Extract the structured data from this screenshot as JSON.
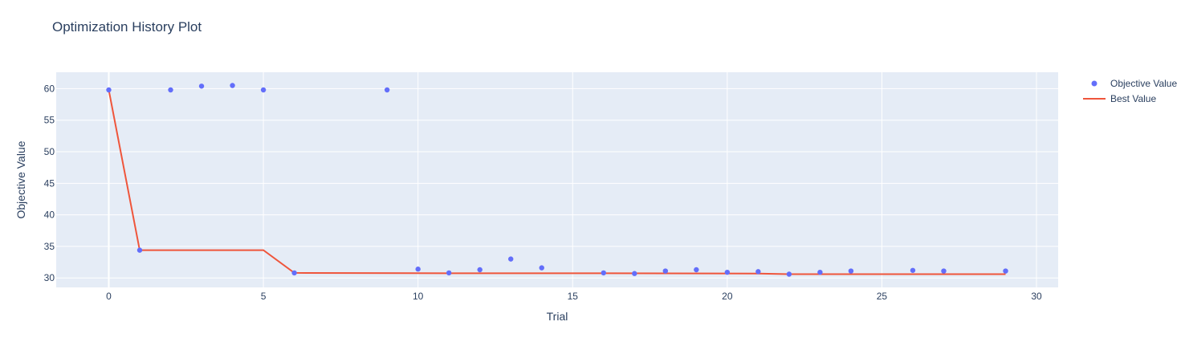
{
  "chart_data": {
    "type": "scatter",
    "title": "Optimization History Plot",
    "xlabel": "Trial",
    "ylabel": "Objective Value",
    "xlim": [
      -1.7,
      30.7
    ],
    "ylim": [
      28.5,
      62.6
    ],
    "xticks": [
      0,
      5,
      10,
      15,
      20,
      25,
      30
    ],
    "yticks": [
      30,
      35,
      40,
      45,
      50,
      55,
      60
    ],
    "grid": true,
    "legend_position": "top-right",
    "colors": {
      "plot_bg": "#e5ecf6",
      "grid": "#ffffff",
      "text": "#2a3f5f"
    },
    "series": [
      {
        "name": "Objective Value",
        "mode": "markers",
        "color": "#636efa",
        "points": [
          {
            "x": 0,
            "y": 59.8
          },
          {
            "x": 1,
            "y": 34.4
          },
          {
            "x": 2,
            "y": 59.8
          },
          {
            "x": 3,
            "y": 60.4
          },
          {
            "x": 4,
            "y": 60.5
          },
          {
            "x": 5,
            "y": 59.8
          },
          {
            "x": 6,
            "y": 30.8
          },
          {
            "x": 9,
            "y": 59.8
          },
          {
            "x": 10,
            "y": 31.4
          },
          {
            "x": 11,
            "y": 30.8
          },
          {
            "x": 12,
            "y": 31.3
          },
          {
            "x": 13,
            "y": 33.0
          },
          {
            "x": 14,
            "y": 31.6
          },
          {
            "x": 16,
            "y": 30.8
          },
          {
            "x": 17,
            "y": 30.7
          },
          {
            "x": 18,
            "y": 31.1
          },
          {
            "x": 19,
            "y": 31.3
          },
          {
            "x": 20,
            "y": 30.9
          },
          {
            "x": 21,
            "y": 31.0
          },
          {
            "x": 22,
            "y": 30.6
          },
          {
            "x": 23,
            "y": 30.9
          },
          {
            "x": 24,
            "y": 31.1
          },
          {
            "x": 26,
            "y": 31.2
          },
          {
            "x": 27,
            "y": 31.1
          },
          {
            "x": 29,
            "y": 31.1
          }
        ]
      },
      {
        "name": "Best Value",
        "mode": "lines",
        "color": "#ef553b",
        "points": [
          {
            "x": 0,
            "y": 59.8
          },
          {
            "x": 1,
            "y": 34.4
          },
          {
            "x": 5,
            "y": 34.4
          },
          {
            "x": 6,
            "y": 30.8
          },
          {
            "x": 11,
            "y": 30.75
          },
          {
            "x": 16,
            "y": 30.75
          },
          {
            "x": 21,
            "y": 30.7
          },
          {
            "x": 22,
            "y": 30.6
          },
          {
            "x": 29,
            "y": 30.6
          }
        ]
      }
    ]
  }
}
